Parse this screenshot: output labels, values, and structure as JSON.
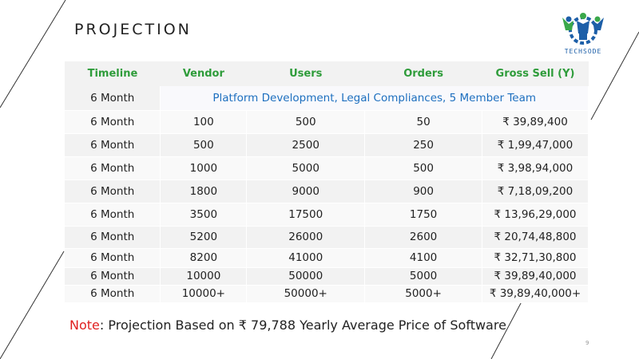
{
  "title": "PROJECTION",
  "logo": {
    "text": "TECHSODE",
    "colors": {
      "blue": "#1d5fa8",
      "green": "#3aa84a"
    }
  },
  "table": {
    "headers": [
      "Timeline",
      "Vendor",
      "Users",
      "Orders",
      "Gross Sell (Y)"
    ],
    "first_row": {
      "timeline": "6 Month",
      "merged_text": "Platform Development, Legal Compliances, 5 Member Team"
    },
    "rows": [
      [
        "6 Month",
        "100",
        "500",
        "50",
        "₹ 39,89,400"
      ],
      [
        "6 Month",
        "500",
        "2500",
        "250",
        "₹ 1,99,47,000"
      ],
      [
        "6 Month",
        "1000",
        "5000",
        "500",
        "₹ 3,98,94,000"
      ],
      [
        "6 Month",
        "1800",
        "9000",
        "900",
        "₹ 7,18,09,200"
      ],
      [
        "6 Month",
        "3500",
        "17500",
        "1750",
        "₹ 13,96,29,000"
      ],
      [
        "6 Month",
        "5200",
        "26000",
        "2600",
        "₹ 20,74,48,800"
      ],
      [
        "6 Month",
        "8200",
        "41000",
        "4100",
        "₹ 32,71,30,800"
      ],
      [
        "6 Month",
        "10000",
        "50000",
        "5000",
        "₹ 39,89,40,000"
      ],
      [
        "6 Month",
        "10000+",
        "50000+",
        "5000+",
        "₹ 39,89,40,000+"
      ]
    ]
  },
  "note": {
    "label": "Note",
    "text": ": Projection Based on ₹ 79,788 Yearly Average Price of Software"
  },
  "page_number": "9",
  "colors": {
    "header_text": "#2e9c3a",
    "merged_text": "#1d6fbf",
    "note_label": "#e02020"
  }
}
